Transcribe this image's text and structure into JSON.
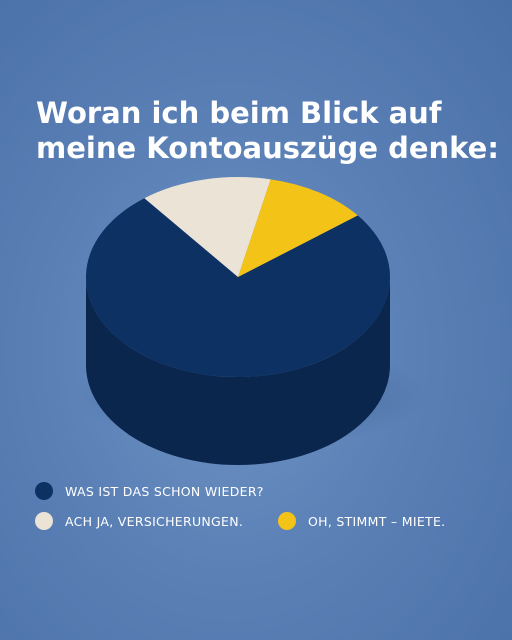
{
  "title": {
    "line1": "Woran ich beim Blick auf",
    "line2": "meine Kontoauszüge denke:"
  },
  "colors": {
    "navy": "#0e3163",
    "cream": "#ebe4d6",
    "yellow": "#f4c318"
  },
  "chart_data": {
    "type": "pie",
    "title": "Woran ich beim Blick auf meine Kontoauszüge denke:",
    "slices": [
      {
        "label": "WAS IST DAS SCHON WIEDER?",
        "value": 75,
        "color": "#0e3163"
      },
      {
        "label": "ACH JA, VERSICHERUNGEN.",
        "value": 14,
        "color": "#ebe4d6"
      },
      {
        "label": "OH, STIMMT – MIETE.",
        "value": 11,
        "color": "#f4c318"
      }
    ],
    "legend_position": "bottom"
  }
}
